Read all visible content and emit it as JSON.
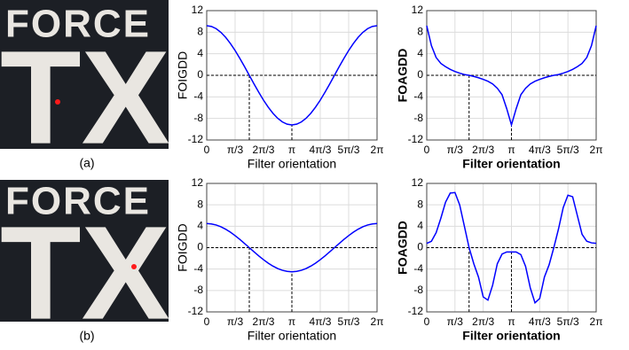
{
  "panels": [
    {
      "label": "(a)",
      "sign": [
        "FORCE",
        "TX"
      ]
    },
    {
      "label": "(b)",
      "sign": [
        "FORCE",
        "TX"
      ]
    }
  ],
  "chart_data": [
    {
      "type": "line",
      "ylabel": "FOIGDD",
      "xlabel": "Filter orientation",
      "color": "#0000ff",
      "grid": true,
      "x": [
        0,
        0.1745,
        0.3491,
        0.5236,
        0.6981,
        0.8727,
        1.0472,
        1.2217,
        1.3963,
        1.5708,
        1.7453,
        1.9199,
        2.0944,
        2.2689,
        2.4435,
        2.618,
        2.7925,
        2.9671,
        3.1416,
        3.3161,
        3.4907,
        3.6652,
        3.8397,
        4.0143,
        4.1888,
        4.3633,
        4.5379,
        4.7124,
        4.8869,
        5.0615,
        5.236,
        5.4105,
        5.5851,
        5.7596,
        5.9341,
        6.1087,
        6.2832
      ],
      "values": [
        9.2,
        9.06,
        8.65,
        7.97,
        7.05,
        5.91,
        4.6,
        3.15,
        1.6,
        0,
        -1.6,
        -3.15,
        -4.6,
        -5.91,
        -7.05,
        -7.97,
        -8.65,
        -9.06,
        -9.2,
        -9.06,
        -8.65,
        -7.97,
        -7.05,
        -5.91,
        -4.6,
        -3.15,
        -1.6,
        0,
        1.6,
        3.15,
        4.6,
        5.91,
        7.05,
        7.97,
        8.65,
        9.06,
        9.2
      ],
      "xlim": [
        0,
        6.2832
      ],
      "ylim": [
        -12,
        12
      ],
      "xticks": [
        0,
        {
          "value": 1.0472,
          "label": "π/3"
        },
        {
          "value": 2.0944,
          "label": "2π/3"
        },
        {
          "value": 3.1416,
          "label": "π"
        },
        {
          "value": 4.1888,
          "label": "4π/3"
        },
        {
          "value": 5.236,
          "label": "5π/3"
        },
        {
          "value": 6.2832,
          "label": "2π"
        }
      ],
      "yticks": [
        12,
        8,
        4,
        0,
        -4,
        -8,
        -12
      ],
      "ref_y": 0,
      "ref_x": [
        1.5708,
        3.1416
      ]
    },
    {
      "type": "line",
      "ylabel": "FOAGDD",
      "xlabel": "Filter orientation",
      "color": "#0000ff",
      "grid": true,
      "x": [
        0,
        0.1745,
        0.3491,
        0.5236,
        0.6981,
        0.8727,
        1.0472,
        1.2217,
        1.3963,
        1.5708,
        1.7453,
        1.9199,
        2.0944,
        2.2689,
        2.4435,
        2.618,
        2.7925,
        2.9671,
        3.1416,
        3.3161,
        3.4907,
        3.6652,
        3.8397,
        4.0143,
        4.1888,
        4.3633,
        4.5379,
        4.7124,
        4.8869,
        5.0615,
        5.236,
        5.4105,
        5.5851,
        5.7596,
        5.9341,
        6.1087,
        6.2832
      ],
      "values": [
        9.2,
        5.5,
        3.3,
        2.2,
        1.6,
        1.1,
        0.7,
        0.4,
        0.15,
        0,
        -0.2,
        -0.45,
        -0.75,
        -1.1,
        -1.6,
        -2.4,
        -3.6,
        -6.2,
        -9.2,
        -6.2,
        -3.6,
        -2.4,
        -1.6,
        -1.1,
        -0.75,
        -0.45,
        -0.2,
        0,
        0.15,
        0.4,
        0.7,
        1.1,
        1.6,
        2.2,
        3.3,
        5.5,
        9.2
      ],
      "xlim": [
        0,
        6.2832
      ],
      "ylim": [
        -12,
        12
      ],
      "xticks": [
        0,
        {
          "value": 1.0472,
          "label": "π/3"
        },
        {
          "value": 2.0944,
          "label": "2π/3"
        },
        {
          "value": 3.1416,
          "label": "π"
        },
        {
          "value": 4.1888,
          "label": "4π/3"
        },
        {
          "value": 5.236,
          "label": "5π/3"
        },
        {
          "value": 6.2832,
          "label": "2π"
        }
      ],
      "yticks": [
        12,
        8,
        4,
        0,
        -4,
        -8,
        -12
      ],
      "ref_y": 0,
      "ref_x": [
        1.5708,
        3.1416
      ]
    },
    {
      "type": "line",
      "ylabel": "FOIGDD",
      "xlabel": "Filter orientation",
      "color": "#0000ff",
      "grid": true,
      "x": [
        0,
        0.1745,
        0.3491,
        0.5236,
        0.6981,
        0.8727,
        1.0472,
        1.2217,
        1.3963,
        1.5708,
        1.7453,
        1.9199,
        2.0944,
        2.2689,
        2.4435,
        2.618,
        2.7925,
        2.9671,
        3.1416,
        3.3161,
        3.4907,
        3.6652,
        3.8397,
        4.0143,
        4.1888,
        4.3633,
        4.5379,
        4.7124,
        4.8869,
        5.0615,
        5.236,
        5.4105,
        5.5851,
        5.7596,
        5.9341,
        6.1087,
        6.2832
      ],
      "values": [
        4.5,
        4.43,
        4.23,
        3.9,
        3.45,
        2.89,
        2.25,
        1.54,
        0.78,
        0,
        -0.78,
        -1.54,
        -2.25,
        -2.89,
        -3.45,
        -3.9,
        -4.23,
        -4.43,
        -4.5,
        -4.43,
        -4.23,
        -3.9,
        -3.45,
        -2.89,
        -2.25,
        -1.54,
        -0.78,
        0,
        0.78,
        1.54,
        2.25,
        2.89,
        3.45,
        3.9,
        4.23,
        4.43,
        4.5
      ],
      "xlim": [
        0,
        6.2832
      ],
      "ylim": [
        -12,
        12
      ],
      "xticks": [
        0,
        {
          "value": 1.0472,
          "label": "π/3"
        },
        {
          "value": 2.0944,
          "label": "2π/3"
        },
        {
          "value": 3.1416,
          "label": "π"
        },
        {
          "value": 4.1888,
          "label": "4π/3"
        },
        {
          "value": 5.236,
          "label": "5π/3"
        },
        {
          "value": 6.2832,
          "label": "2π"
        }
      ],
      "yticks": [
        12,
        8,
        4,
        0,
        -4,
        -8,
        -12
      ],
      "ref_y": 0,
      "ref_x": [
        1.5708,
        3.1416
      ]
    },
    {
      "type": "line",
      "ylabel": "FOAGDD",
      "xlabel": "Filter orientation",
      "color": "#0000ff",
      "grid": true,
      "x": [
        0,
        0.1745,
        0.3491,
        0.5236,
        0.6981,
        0.8727,
        1.0472,
        1.2217,
        1.3963,
        1.5708,
        1.7453,
        1.9199,
        2.0944,
        2.2689,
        2.4435,
        2.618,
        2.7925,
        2.9671,
        3.1416,
        3.3161,
        3.4907,
        3.6652,
        3.8397,
        4.0143,
        4.1888,
        4.3633,
        4.5379,
        4.7124,
        4.8869,
        5.0615,
        5.236,
        5.4105,
        5.5851,
        5.7596,
        5.9341,
        6.1087,
        6.2832
      ],
      "values": [
        0.8,
        1.2,
        2.8,
        5.5,
        8.5,
        10.2,
        10.3,
        8.0,
        4.0,
        0,
        -3.0,
        -5.5,
        -9.2,
        -9.8,
        -7.0,
        -3.0,
        -1.2,
        -0.8,
        -0.8,
        -0.8,
        -1.3,
        -3.5,
        -7.5,
        -10.3,
        -9.5,
        -5.5,
        -3.2,
        0,
        3.5,
        7.5,
        9.8,
        9.5,
        6.0,
        2.5,
        1.2,
        0.9,
        0.8
      ],
      "xlim": [
        0,
        6.2832
      ],
      "ylim": [
        -12,
        12
      ],
      "xticks": [
        0,
        {
          "value": 1.0472,
          "label": "π/3"
        },
        {
          "value": 2.0944,
          "label": "2π/3"
        },
        {
          "value": 3.1416,
          "label": "π"
        },
        {
          "value": 4.1888,
          "label": "4π/3"
        },
        {
          "value": 5.236,
          "label": "5π/3"
        },
        {
          "value": 6.2832,
          "label": "2π"
        }
      ],
      "yticks": [
        12,
        8,
        4,
        0,
        -4,
        -8,
        -12
      ],
      "ref_y": 0,
      "ref_x": [
        1.5708,
        3.1416
      ]
    }
  ]
}
